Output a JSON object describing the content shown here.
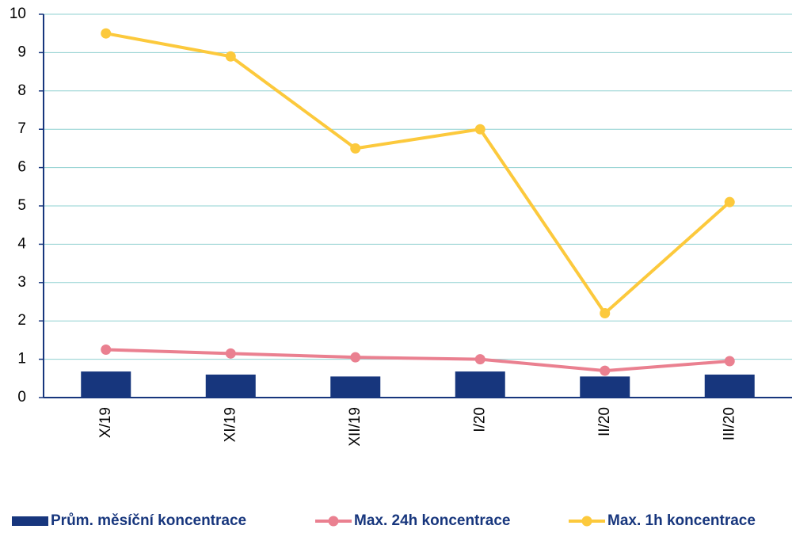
{
  "chart_data": {
    "type": "bar",
    "categories": [
      "X/19",
      "XI/19",
      "XII/19",
      "I/20",
      "II/20",
      "III/20"
    ],
    "series": [
      {
        "name": "Prům. měsíční koncentrace",
        "type": "bar",
        "color": "#17367d",
        "values": [
          0.68,
          0.6,
          0.55,
          0.68,
          0.55,
          0.6
        ]
      },
      {
        "name": "Max. 24h koncentrace",
        "type": "line",
        "color": "#ea8090",
        "values": [
          1.25,
          1.15,
          1.05,
          1.0,
          0.7,
          0.95
        ]
      },
      {
        "name": "Max. 1h koncentrace",
        "type": "line",
        "color": "#fcc93c",
        "values": [
          9.5,
          8.9,
          6.5,
          7.0,
          2.2,
          5.1
        ]
      }
    ],
    "ylim": [
      0,
      10
    ],
    "yticks": [
      0,
      1,
      2,
      3,
      4,
      5,
      6,
      7,
      8,
      9,
      10
    ],
    "grid": true,
    "legend": "bottom"
  }
}
